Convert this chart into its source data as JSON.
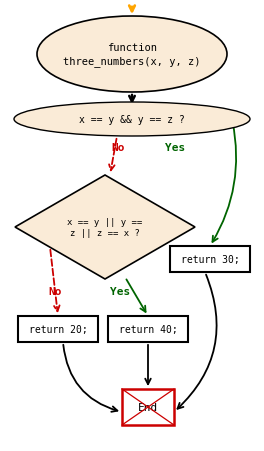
{
  "bg_color": "#ffffff",
  "arrow_color_orange": "#FFA500",
  "arrow_color_black": "#000000",
  "arrow_color_red": "#cc0000",
  "arrow_color_green": "#006400",
  "node_fill_ellipse": "#faebd7",
  "node_fill_diamond": "#faebd7",
  "node_fill_rect": "#ffffff",
  "node_edge_color": "#000000",
  "end_edge_color": "#cc0000",
  "font_family": "monospace",
  "title_text": "function\nthree_numbers(x, y, z)",
  "cond1_text": "x == y && y == z ?",
  "cond2_text": "x == y || y ==\nz || z == x ?",
  "ret30_text": "return 30;",
  "ret20_text": "return 20;",
  "ret40_text": "return 40;",
  "end_text": "End",
  "no_label": "No",
  "yes_label": "Yes",
  "fig_w": 2.64,
  "fig_h": 4.52,
  "dpi": 100
}
